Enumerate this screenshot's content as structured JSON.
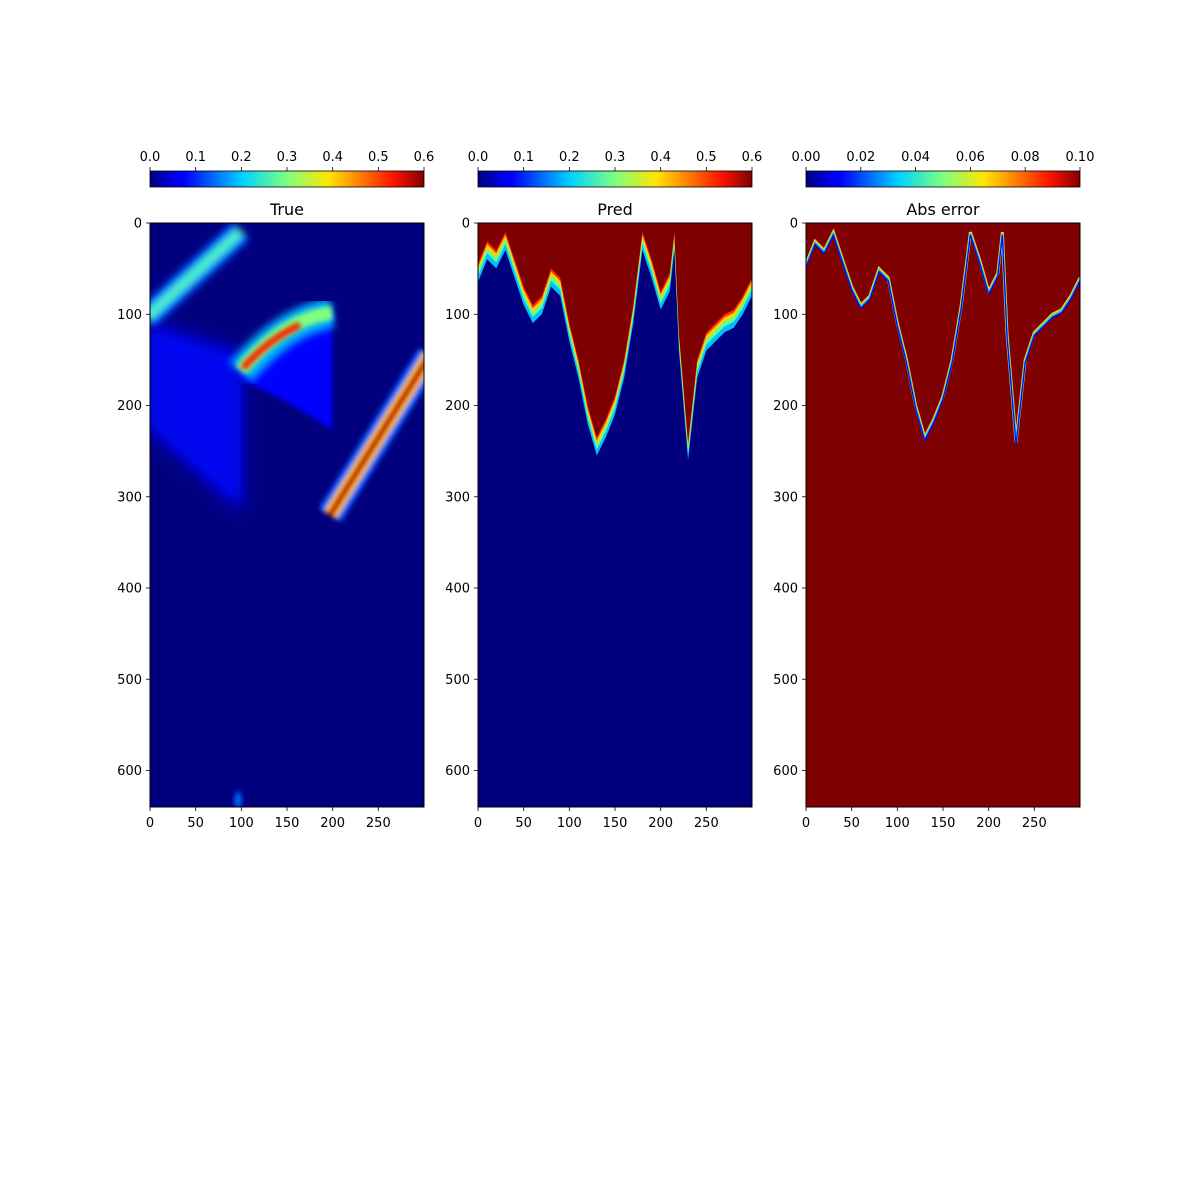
{
  "chart_data": [
    {
      "type": "heatmap",
      "title": "True",
      "xticks": [
        0,
        50,
        100,
        150,
        200,
        250
      ],
      "yticks": [
        0,
        100,
        200,
        300,
        400,
        500,
        600
      ],
      "xlim": [
        0,
        300
      ],
      "ylim": [
        640,
        0
      ],
      "colormap": "jet",
      "colorbar": {
        "ticks": [
          "0.0",
          "0.1",
          "0.2",
          "0.3",
          "0.4",
          "0.5",
          "0.6"
        ],
        "vmin": 0.0,
        "vmax": 0.6,
        "placement": "top"
      },
      "features": [
        {
          "desc": "diagonal band",
          "x": [
            0,
            100
          ],
          "y": [
            100,
            10
          ],
          "width": 14,
          "peak": 0.3
        },
        {
          "desc": "curved fan",
          "x": [
            100,
            200
          ],
          "y_top": [
            155,
            95
          ],
          "y_bottom": [
            175,
            230
          ],
          "peak": 0.55
        },
        {
          "desc": "diagonal band",
          "x": [
            200,
            300
          ],
          "y": [
            310,
            150
          ],
          "width": 16,
          "peak": 0.6
        },
        {
          "desc": "faint wedge",
          "x": [
            0,
            100
          ],
          "y_top": [
            110,
            140
          ],
          "y_bottom": [
            230,
            310
          ],
          "peak": 0.12
        }
      ]
    },
    {
      "type": "heatmap",
      "title": "Pred",
      "xticks": [
        0,
        50,
        100,
        150,
        200,
        250
      ],
      "yticks": [
        0,
        100,
        200,
        300,
        400,
        500,
        600
      ],
      "xlim": [
        0,
        300
      ],
      "ylim": [
        640,
        0
      ],
      "colormap": "jet",
      "colorbar": {
        "ticks": [
          "0.0",
          "0.1",
          "0.2",
          "0.3",
          "0.4",
          "0.5",
          "0.6"
        ],
        "vmin": 0.0,
        "vmax": 0.6,
        "placement": "top"
      },
      "boundary": {
        "x": [
          0,
          10,
          20,
          30,
          40,
          50,
          60,
          70,
          80,
          90,
          100,
          110,
          120,
          130,
          140,
          150,
          160,
          170,
          180,
          190,
          200,
          210,
          215,
          220,
          230,
          240,
          250,
          260,
          270,
          280,
          290,
          300
        ],
        "y": [
          45,
          20,
          30,
          10,
          40,
          70,
          90,
          80,
          50,
          60,
          110,
          150,
          200,
          235,
          215,
          190,
          150,
          90,
          10,
          40,
          75,
          55,
          10,
          120,
          240,
          150,
          120,
          110,
          100,
          95,
          80,
          60
        ]
      }
    },
    {
      "type": "heatmap",
      "title": "Abs error",
      "xticks": [
        0,
        50,
        100,
        150,
        200,
        250
      ],
      "yticks": [
        0,
        100,
        200,
        300,
        400,
        500,
        600
      ],
      "xlim": [
        0,
        300
      ],
      "ylim": [
        640,
        0
      ],
      "colormap": "jet",
      "colorbar": {
        "ticks": [
          "0.00",
          "0.02",
          "0.04",
          "0.06",
          "0.08",
          "0.10"
        ],
        "vmin": 0.0,
        "vmax": 0.1,
        "placement": "top"
      },
      "boundary": {
        "x": [
          0,
          10,
          20,
          30,
          40,
          50,
          60,
          70,
          80,
          90,
          100,
          110,
          120,
          130,
          140,
          150,
          160,
          170,
          180,
          190,
          200,
          210,
          215,
          220,
          230,
          240,
          250,
          260,
          270,
          280,
          290,
          300
        ],
        "y": [
          45,
          20,
          30,
          10,
          40,
          70,
          90,
          80,
          50,
          60,
          110,
          150,
          200,
          235,
          215,
          190,
          150,
          90,
          10,
          40,
          75,
          55,
          10,
          120,
          240,
          150,
          120,
          110,
          100,
          95,
          80,
          60
        ]
      },
      "background_value": 0.1
    }
  ]
}
